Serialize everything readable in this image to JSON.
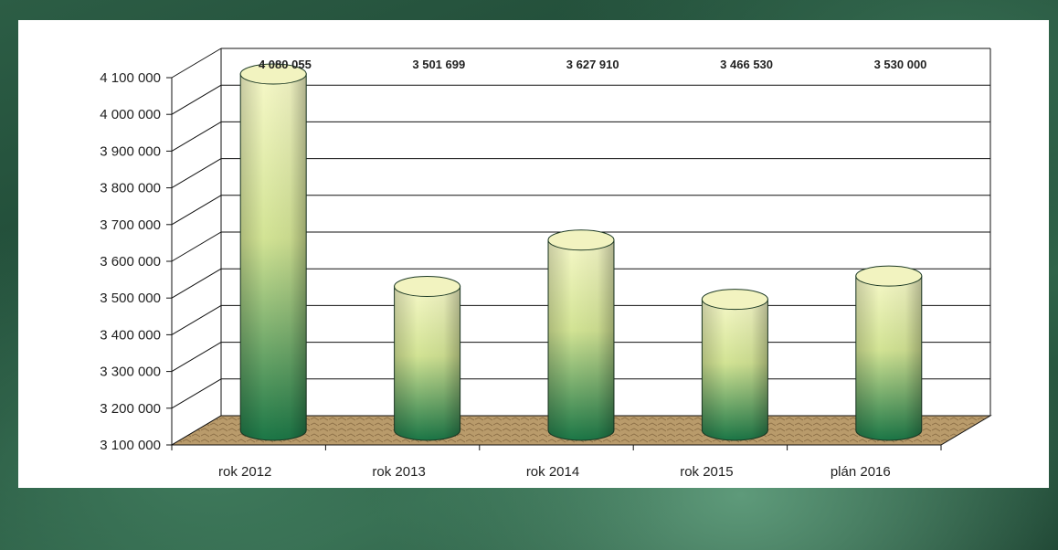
{
  "colors": {
    "frame": "#1f4a36",
    "panel": "#ffffff",
    "bar_top": "#f4f6c2",
    "bar_mid": "#d9e59a",
    "bar_bottom": "#1f7a48",
    "floor": "#b89a6a",
    "gridline": "#111111"
  },
  "chart_data": {
    "type": "bar",
    "title": "",
    "xlabel": "",
    "ylabel": "",
    "categories": [
      "rok 2012",
      "rok 2013",
      "rok 2014",
      "rok 2015",
      "plán 2016"
    ],
    "values": [
      4080055,
      3501699,
      3627910,
      3466530,
      3530000
    ],
    "data_labels": [
      "4 080 055",
      "3 501 699",
      "3 627 910",
      "3 466 530",
      "3 530 000"
    ],
    "ylim": [
      3100000,
      4100000
    ],
    "yticks": [
      3100000,
      3200000,
      3300000,
      3400000,
      3500000,
      3600000,
      3700000,
      3800000,
      3900000,
      4000000,
      4100000
    ],
    "ytick_labels": [
      "3 100 000",
      "3 200 000",
      "3 300 000",
      "3 400 000",
      "3 500 000",
      "3 600 000",
      "3 700 000",
      "3 800 000",
      "3 900 000",
      "4 000 000",
      "4 100 000"
    ],
    "grid": true,
    "style": "3d-cylinder"
  }
}
